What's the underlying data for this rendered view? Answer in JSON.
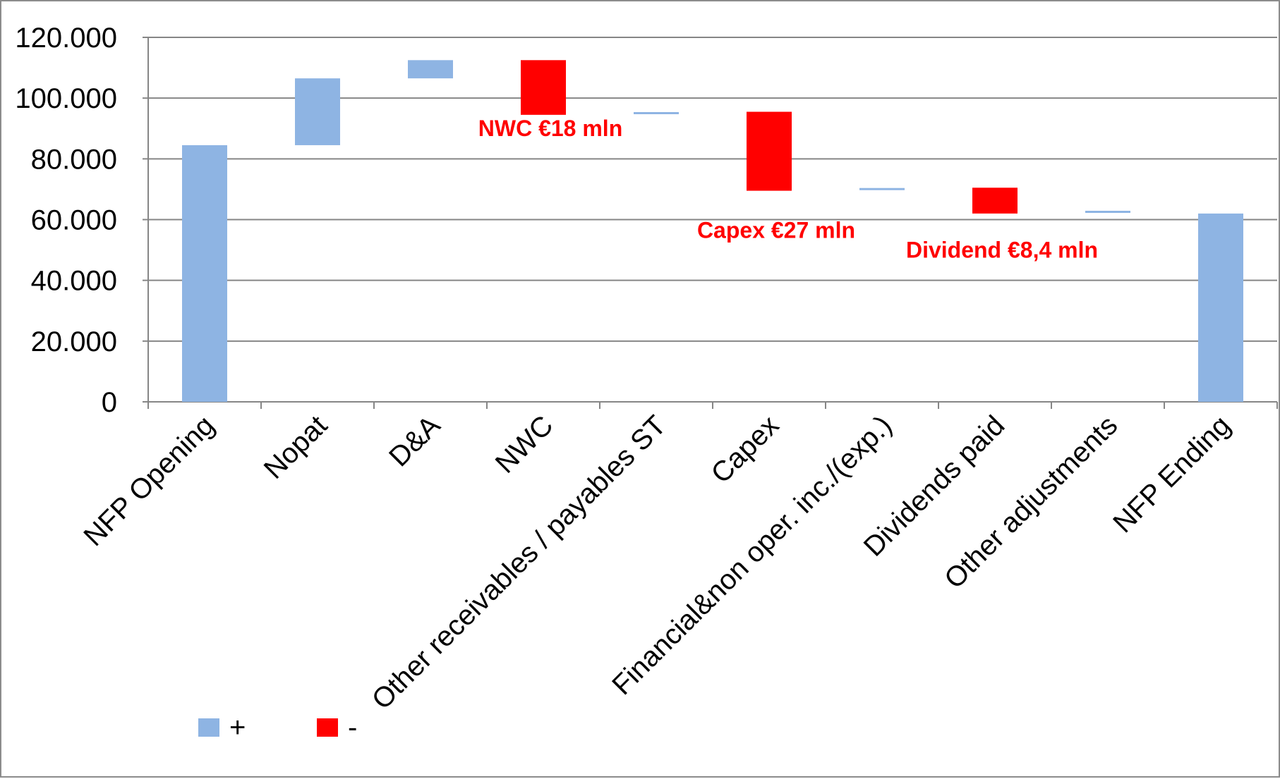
{
  "chart_data": {
    "type": "bar",
    "subtype": "waterfall",
    "title": "",
    "xlabel": "",
    "ylabel": "",
    "ylim": [
      0,
      120000
    ],
    "yticks": [
      "0",
      "20.000",
      "40.000",
      "60.000",
      "80.000",
      "100.000",
      "120.000"
    ],
    "grid": true,
    "legend_position": "bottom-left",
    "colors": {
      "increase": "#8eb4e3",
      "decrease": "#ff0000",
      "grid": "#868686"
    },
    "categories": [
      "NFP Opening",
      "Nopat",
      "D&A",
      "NWC",
      "Other receivables / payables ST",
      "Capex",
      "Financial&non oper. inc./(exp.)",
      "Dividends paid",
      "Other adjustments",
      "NFP Ending"
    ],
    "bars": [
      {
        "category": "NFP Opening",
        "low": 0,
        "high": 84500,
        "sign": "+"
      },
      {
        "category": "Nopat",
        "low": 84500,
        "high": 106500,
        "sign": "+"
      },
      {
        "category": "D&A",
        "low": 106500,
        "high": 112500,
        "sign": "+"
      },
      {
        "category": "NWC",
        "low": 94500,
        "high": 112500,
        "sign": "-"
      },
      {
        "category": "Other receivables / payables ST",
        "low": 94800,
        "high": 95400,
        "sign": "+"
      },
      {
        "category": "Capex",
        "low": 69500,
        "high": 95500,
        "sign": "-"
      },
      {
        "category": "Financial&non oper. inc./(exp.)",
        "low": 69800,
        "high": 70400,
        "sign": "+"
      },
      {
        "category": "Dividends paid",
        "low": 62000,
        "high": 70500,
        "sign": "-"
      },
      {
        "category": "Other adjustments",
        "low": 62300,
        "high": 62900,
        "sign": "+"
      },
      {
        "category": "NFP Ending",
        "low": 0,
        "high": 62000,
        "sign": "+"
      }
    ],
    "annotations": [
      {
        "text": "NWC €18 mln",
        "category": "NWC",
        "y": 87500
      },
      {
        "text": "Capex €27 mln",
        "category": "Capex",
        "y": 54000
      },
      {
        "text": "Dividend €8,4 mln",
        "category": "Dividends paid",
        "y": 47500
      }
    ],
    "legend": [
      {
        "label": "+",
        "color": "#8eb4e3"
      },
      {
        "label": "-",
        "color": "#ff0000"
      }
    ]
  }
}
